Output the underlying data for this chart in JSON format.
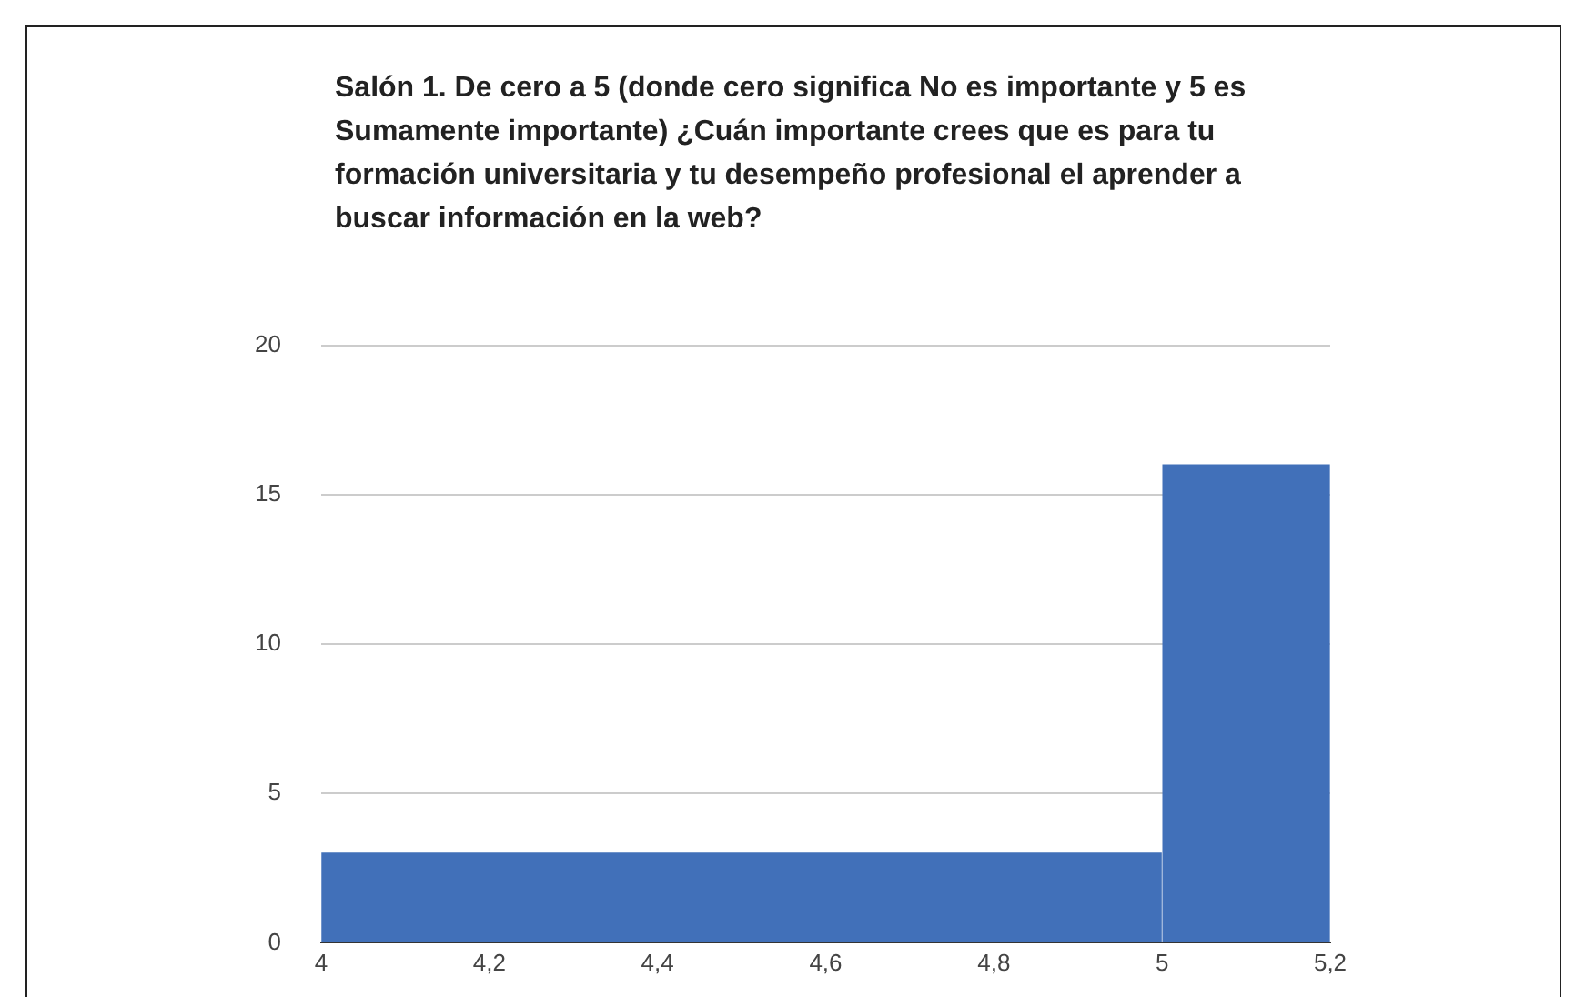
{
  "chart_data": {
    "type": "histogram",
    "title": "Salón 1. De cero a 5 (donde cero significa No es importante y 5 es Sumamente importante) ¿Cuán importante crees que es para tu formación universitaria y tu desempeño profesional el aprender a buscar información en la web?",
    "bins": [
      4,
      5,
      5.2
    ],
    "values": [
      3,
      16
    ],
    "color": "#4170b9",
    "xlim": [
      4,
      5.2
    ],
    "xticks": [
      4,
      {
        "value": 4.2,
        "label": "4,2"
      },
      {
        "value": 4.4,
        "label": "4,4"
      },
      {
        "value": 4.6,
        "label": "4,6"
      },
      {
        "value": 4.8,
        "label": "4,8"
      },
      5,
      {
        "value": 5.2,
        "label": "5,2"
      }
    ],
    "ylim": [
      0,
      20
    ],
    "yticks": [
      0,
      5,
      10,
      15,
      20
    ],
    "grid": "y",
    "legend": false
  }
}
